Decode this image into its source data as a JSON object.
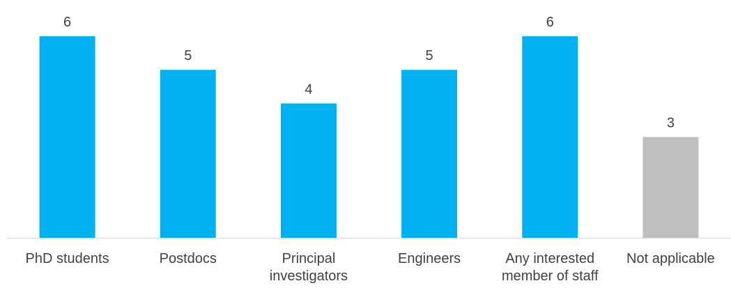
{
  "chart_data": {
    "type": "bar",
    "title": "",
    "xlabel": "",
    "ylabel": "",
    "categories": [
      [
        "PhD students"
      ],
      [
        "Postdocs"
      ],
      [
        "Principal",
        "investigators"
      ],
      [
        "Engineers"
      ],
      [
        "Any interested",
        "member of staff"
      ],
      [
        "Not applicable"
      ]
    ],
    "values": [
      6,
      5,
      4,
      5,
      6,
      3
    ],
    "bar_colors": [
      "#00B0F0",
      "#00B0F0",
      "#00B0F0",
      "#00B0F0",
      "#00B0F0",
      "#BFBFBF"
    ],
    "ylim": [
      0,
      6.6
    ],
    "grid": false,
    "legend": "none",
    "axis_color": "#D9D9D9",
    "label_color": "#404040"
  }
}
